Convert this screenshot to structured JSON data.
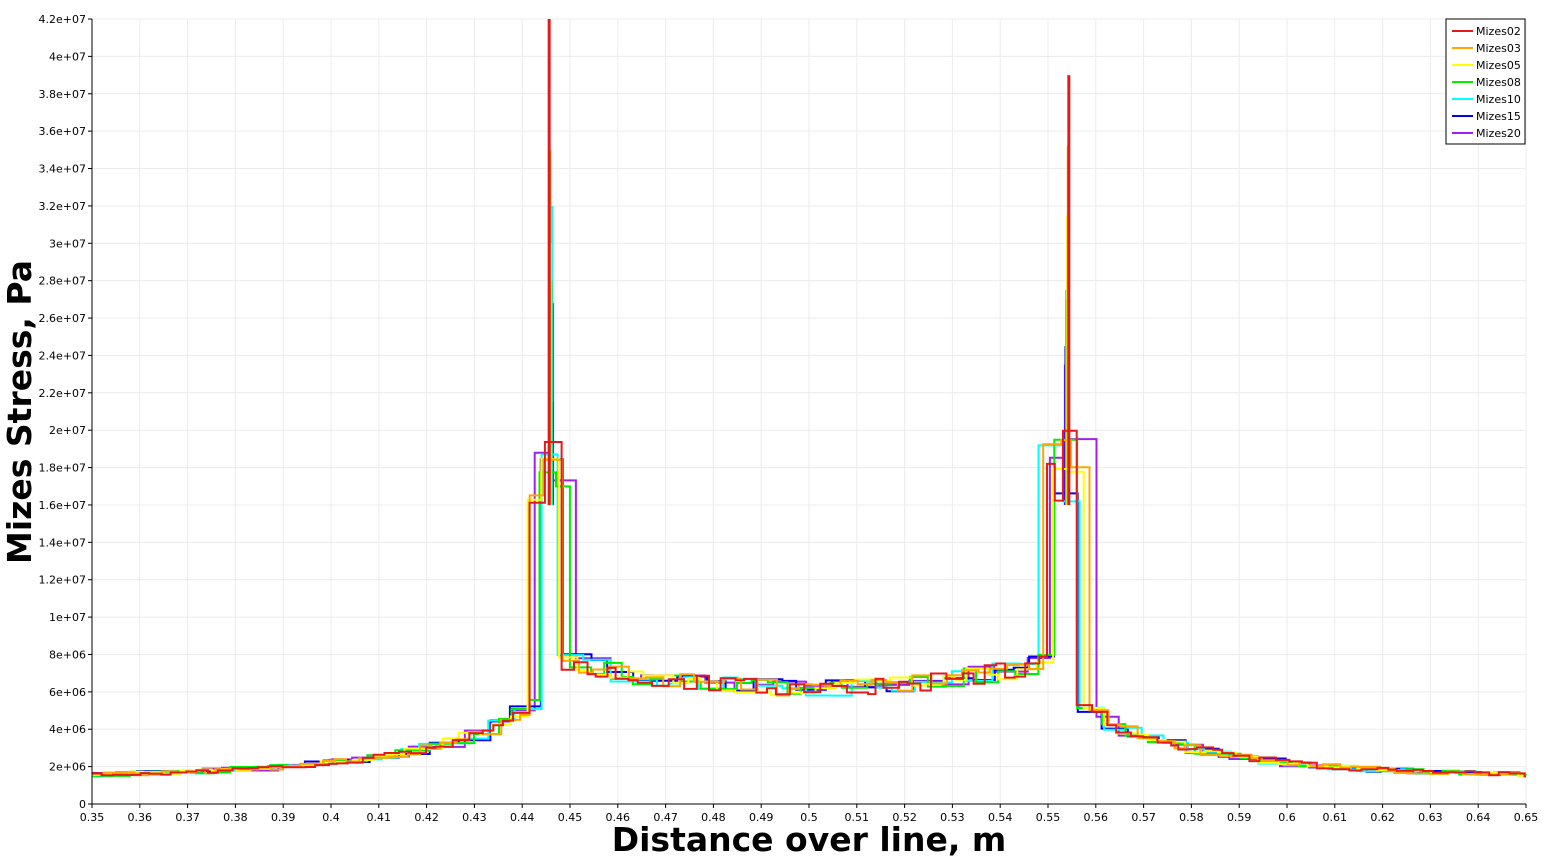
{
  "chart_data": {
    "type": "line",
    "title": "",
    "xlabel": "Distance over line, m",
    "ylabel": "Mizes Stress, Pa",
    "xlim": [
      0.35,
      0.65
    ],
    "ylim": [
      0,
      42000000
    ],
    "grid": true,
    "legend_position": "top-right",
    "x_ticks": [
      0.35,
      0.36,
      0.37,
      0.38,
      0.39,
      0.4,
      0.41,
      0.42,
      0.43,
      0.44,
      0.45,
      0.46,
      0.47,
      0.48,
      0.49,
      0.5,
      0.51,
      0.52,
      0.53,
      0.54,
      0.55,
      0.56,
      0.57,
      0.58,
      0.59,
      0.6,
      0.61,
      0.62,
      0.63,
      0.64,
      0.65
    ],
    "x_tick_labels": [
      "0.35",
      "0.36",
      "0.37",
      "0.38",
      "0.39",
      "0.4",
      "0.41",
      "0.42",
      "0.43",
      "0.44",
      "0.45",
      "0.46",
      "0.47",
      "0.48",
      "0.49",
      "0.5",
      "0.51",
      "0.52",
      "0.53",
      "0.54",
      "0.55",
      "0.56",
      "0.57",
      "0.58",
      "0.59",
      "0.6",
      "0.61",
      "0.62",
      "0.63",
      "0.64",
      "0.65"
    ],
    "y_ticks": [
      0,
      2000000,
      4000000,
      6000000,
      8000000,
      10000000,
      12000000,
      14000000,
      16000000,
      18000000,
      20000000,
      22000000,
      24000000,
      26000000,
      28000000,
      30000000,
      32000000,
      34000000,
      36000000,
      38000000,
      40000000,
      42000000
    ],
    "y_tick_labels": [
      "0",
      "2e+06",
      "4e+06",
      "6e+06",
      "8e+06",
      "1e+07",
      "1.2e+07",
      "1.4e+07",
      "1.6e+07",
      "1.8e+07",
      "2e+07",
      "2.2e+07",
      "2.4e+07",
      "2.6e+07",
      "2.8e+07",
      "3e+07",
      "3.2e+07",
      "3.4e+07",
      "3.6e+07",
      "3.8e+07",
      "4e+07",
      "4.2e+07"
    ],
    "series": [
      {
        "name": "Mizes02",
        "color": "#e31a1c",
        "peaks": [
          42000000,
          39000000
        ]
      },
      {
        "name": "Mizes03",
        "color": "#ffa500",
        "peaks": [
          35000000,
          35200000
        ]
      },
      {
        "name": "Mizes05",
        "color": "#ffff00",
        "peaks": [
          30000000,
          31500000
        ]
      },
      {
        "name": "Mizes08",
        "color": "#00ee00",
        "peaks": [
          28000000,
          27000000
        ]
      },
      {
        "name": "Mizes10",
        "color": "#00ffff",
        "peaks": [
          32000000,
          27500000
        ]
      },
      {
        "name": "Mizes15",
        "color": "#0000ee",
        "peaks": [
          21500000,
          24500000
        ]
      },
      {
        "name": "Mizes20",
        "color": "#a020f0",
        "peaks": [
          26800000,
          23500000
        ]
      }
    ]
  }
}
